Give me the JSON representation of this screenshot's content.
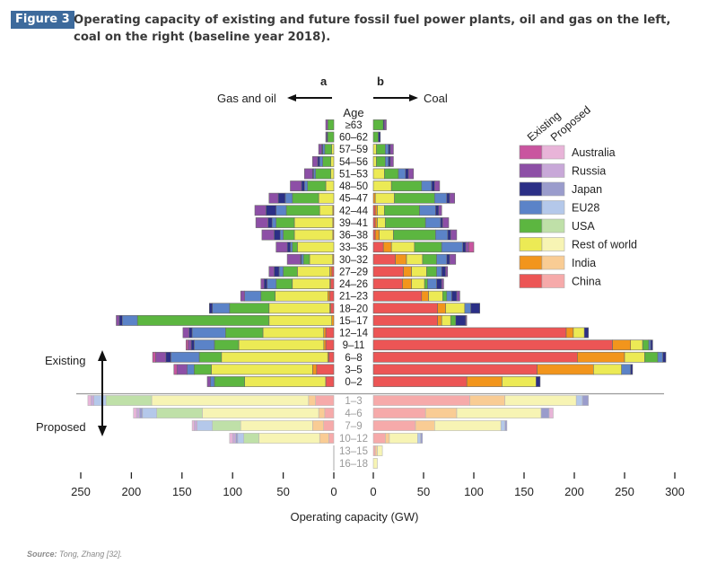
{
  "figure": {
    "badge": "Figure 3",
    "title_line1": "Operating capacity of existing and future fossil fuel power plants, oil and gas on the left,",
    "title_line2": "coal on the right (baseline year 2018).",
    "source_label": "Source:",
    "source_text": " Tong, Zhang [32]."
  },
  "chart_data": {
    "type": "bar",
    "orientation": "horizontal",
    "layout": "population-pyramid",
    "panel_left": {
      "letter": "a",
      "label": "Gas and oil"
    },
    "panel_right": {
      "letter": "b",
      "label": "Coal"
    },
    "age_header": "Age",
    "xlabel": "Operating capacity (GW)",
    "left_ticks": [
      "250",
      "200",
      "150",
      "100",
      "50",
      "0"
    ],
    "right_ticks": [
      "0",
      "50",
      "100",
      "150",
      "200",
      "250",
      "300"
    ],
    "left_xlim": [
      0,
      250
    ],
    "right_xlim": [
      0,
      300
    ],
    "group_labels": {
      "existing": "Existing",
      "proposed": "Proposed"
    },
    "legend": {
      "col_existing": "Existing",
      "col_proposed": "Proposed",
      "placement": "right",
      "entries": [
        {
          "name": "Australia",
          "existing": "#c9559f",
          "proposed": "#e8b4d8"
        },
        {
          "name": "Russia",
          "existing": "#8d4fa6",
          "proposed": "#c8a8d8"
        },
        {
          "name": "Japan",
          "existing": "#2b2f86",
          "proposed": "#9a9ccc"
        },
        {
          "name": "EU28",
          "existing": "#5b83c8",
          "proposed": "#b4c8ea"
        },
        {
          "name": "USA",
          "existing": "#5cb640",
          "proposed": "#bfe0a8"
        },
        {
          "name": "Rest of world",
          "existing": "#ecea55",
          "proposed": "#f7f4b4"
        },
        {
          "name": "India",
          "existing": "#f2951c",
          "proposed": "#f9cc94"
        },
        {
          "name": "China",
          "existing": "#ec5555",
          "proposed": "#f6aaaa"
        }
      ]
    },
    "segment_order": [
      "China",
      "India",
      "Rest of world",
      "USA",
      "EU28",
      "Japan",
      "Russia",
      "Australia"
    ],
    "categories": [
      "≥63",
      "60–62",
      "57–59",
      "54–56",
      "51–53",
      "48–50",
      "45–47",
      "42–44",
      "39–41",
      "36–38",
      "33–35",
      "30–32",
      "27–29",
      "24–26",
      "21–23",
      "18–20",
      "15–17",
      "12–14",
      "9–11",
      "6–8",
      "3–5",
      "0–2",
      "1–3",
      "4–6",
      "7–9",
      "10–12",
      "13–15",
      "16–18"
    ],
    "status": [
      "existing",
      "existing",
      "existing",
      "existing",
      "existing",
      "existing",
      "existing",
      "existing",
      "existing",
      "existing",
      "existing",
      "existing",
      "existing",
      "existing",
      "existing",
      "existing",
      "existing",
      "existing",
      "existing",
      "existing",
      "existing",
      "existing",
      "proposed",
      "proposed",
      "proposed",
      "proposed",
      "proposed",
      "proposed"
    ],
    "gas_oil": [
      [
        0,
        0,
        0,
        6,
        0,
        0,
        2,
        0
      ],
      [
        0,
        0,
        0,
        6,
        0,
        1,
        1,
        0
      ],
      [
        0,
        0,
        2,
        7,
        2,
        1,
        3,
        0
      ],
      [
        0,
        0,
        3,
        8,
        3,
        2,
        5,
        0
      ],
      [
        0,
        0,
        3,
        15,
        2,
        1,
        8,
        0
      ],
      [
        0,
        0,
        8,
        18,
        3,
        3,
        11,
        0
      ],
      [
        0,
        0,
        15,
        26,
        7,
        7,
        9,
        0
      ],
      [
        0,
        1,
        13,
        33,
        10,
        10,
        11,
        0
      ],
      [
        0,
        1,
        38,
        18,
        4,
        4,
        12,
        0
      ],
      [
        0,
        1,
        38,
        11,
        3,
        6,
        12,
        0
      ],
      [
        0,
        0,
        36,
        5,
        2,
        3,
        11,
        0
      ],
      [
        0,
        1,
        23,
        6,
        2,
        1,
        13,
        0
      ],
      [
        2,
        2,
        32,
        14,
        4,
        5,
        5,
        0
      ],
      [
        3,
        1,
        37,
        16,
        9,
        3,
        3,
        0
      ],
      [
        4,
        2,
        52,
        14,
        16,
        0,
        4,
        0
      ],
      [
        3,
        1,
        60,
        39,
        17,
        3,
        0,
        0
      ],
      [
        0,
        2,
        62,
        130,
        15,
        3,
        3,
        0
      ],
      [
        8,
        2,
        60,
        37,
        33,
        3,
        6,
        0
      ],
      [
        8,
        2,
        84,
        24,
        20,
        3,
        3,
        2
      ],
      [
        5,
        1,
        105,
        22,
        28,
        5,
        10,
        3
      ],
      [
        17,
        4,
        100,
        17,
        7,
        0,
        10,
        3
      ],
      [
        8,
        0,
        80,
        30,
        4,
        0,
        3,
        0
      ],
      [
        18,
        7,
        155,
        45,
        12,
        0,
        3,
        3
      ],
      [
        9,
        6,
        115,
        45,
        14,
        3,
        3,
        3
      ],
      [
        10,
        11,
        71,
        28,
        15,
        0,
        3,
        2
      ],
      [
        5,
        9,
        60,
        15,
        6,
        2,
        3,
        3
      ],
      [
        0,
        0,
        0,
        0,
        0,
        0,
        0,
        0
      ],
      [
        0,
        0,
        0,
        0,
        0,
        0,
        0,
        0
      ]
    ],
    "coal": [
      [
        0,
        0,
        0,
        10,
        0,
        1,
        2,
        0
      ],
      [
        0,
        0,
        0,
        5,
        0,
        2,
        0,
        0
      ],
      [
        0,
        0,
        3,
        9,
        3,
        2,
        3,
        0
      ],
      [
        0,
        0,
        3,
        9,
        3,
        2,
        3,
        0
      ],
      [
        0,
        0,
        11,
        14,
        7,
        3,
        5,
        0
      ],
      [
        0,
        0,
        18,
        30,
        10,
        3,
        5,
        0
      ],
      [
        0,
        2,
        19,
        40,
        12,
        3,
        5,
        0
      ],
      [
        2,
        2,
        7,
        35,
        16,
        3,
        3,
        0
      ],
      [
        2,
        2,
        8,
        40,
        15,
        2,
        6,
        0
      ],
      [
        2,
        4,
        14,
        42,
        12,
        3,
        6,
        0
      ],
      [
        10,
        8,
        23,
        27,
        21,
        3,
        3,
        5
      ],
      [
        22,
        11,
        16,
        14,
        10,
        3,
        6,
        0
      ],
      [
        30,
        8,
        15,
        10,
        5,
        4,
        2,
        0
      ],
      [
        29,
        9,
        13,
        3,
        9,
        5,
        2,
        0
      ],
      [
        48,
        7,
        14,
        4,
        5,
        5,
        3,
        0
      ],
      [
        64,
        8,
        19,
        0,
        6,
        9,
        0,
        0
      ],
      [
        64,
        4,
        9,
        5,
        0,
        10,
        1,
        0
      ],
      [
        192,
        7,
        11,
        0,
        0,
        4,
        0,
        0
      ],
      [
        238,
        18,
        12,
        6,
        2,
        2,
        0,
        0
      ],
      [
        203,
        47,
        20,
        13,
        5,
        3,
        0,
        0
      ],
      [
        163,
        56,
        28,
        0,
        9,
        2,
        0,
        0
      ],
      [
        93,
        35,
        34,
        0,
        0,
        4,
        0,
        0
      ],
      [
        96,
        35,
        71,
        0,
        6,
        6,
        0,
        0
      ],
      [
        52,
        31,
        84,
        0,
        0,
        8,
        0,
        4
      ],
      [
        42,
        19,
        66,
        0,
        4,
        2,
        0,
        0
      ],
      [
        12,
        4,
        28,
        0,
        3,
        2,
        0,
        0
      ],
      [
        2,
        2,
        5,
        0,
        0,
        0,
        0,
        0
      ],
      [
        0,
        0,
        4,
        0,
        0,
        0,
        0,
        0
      ]
    ]
  }
}
